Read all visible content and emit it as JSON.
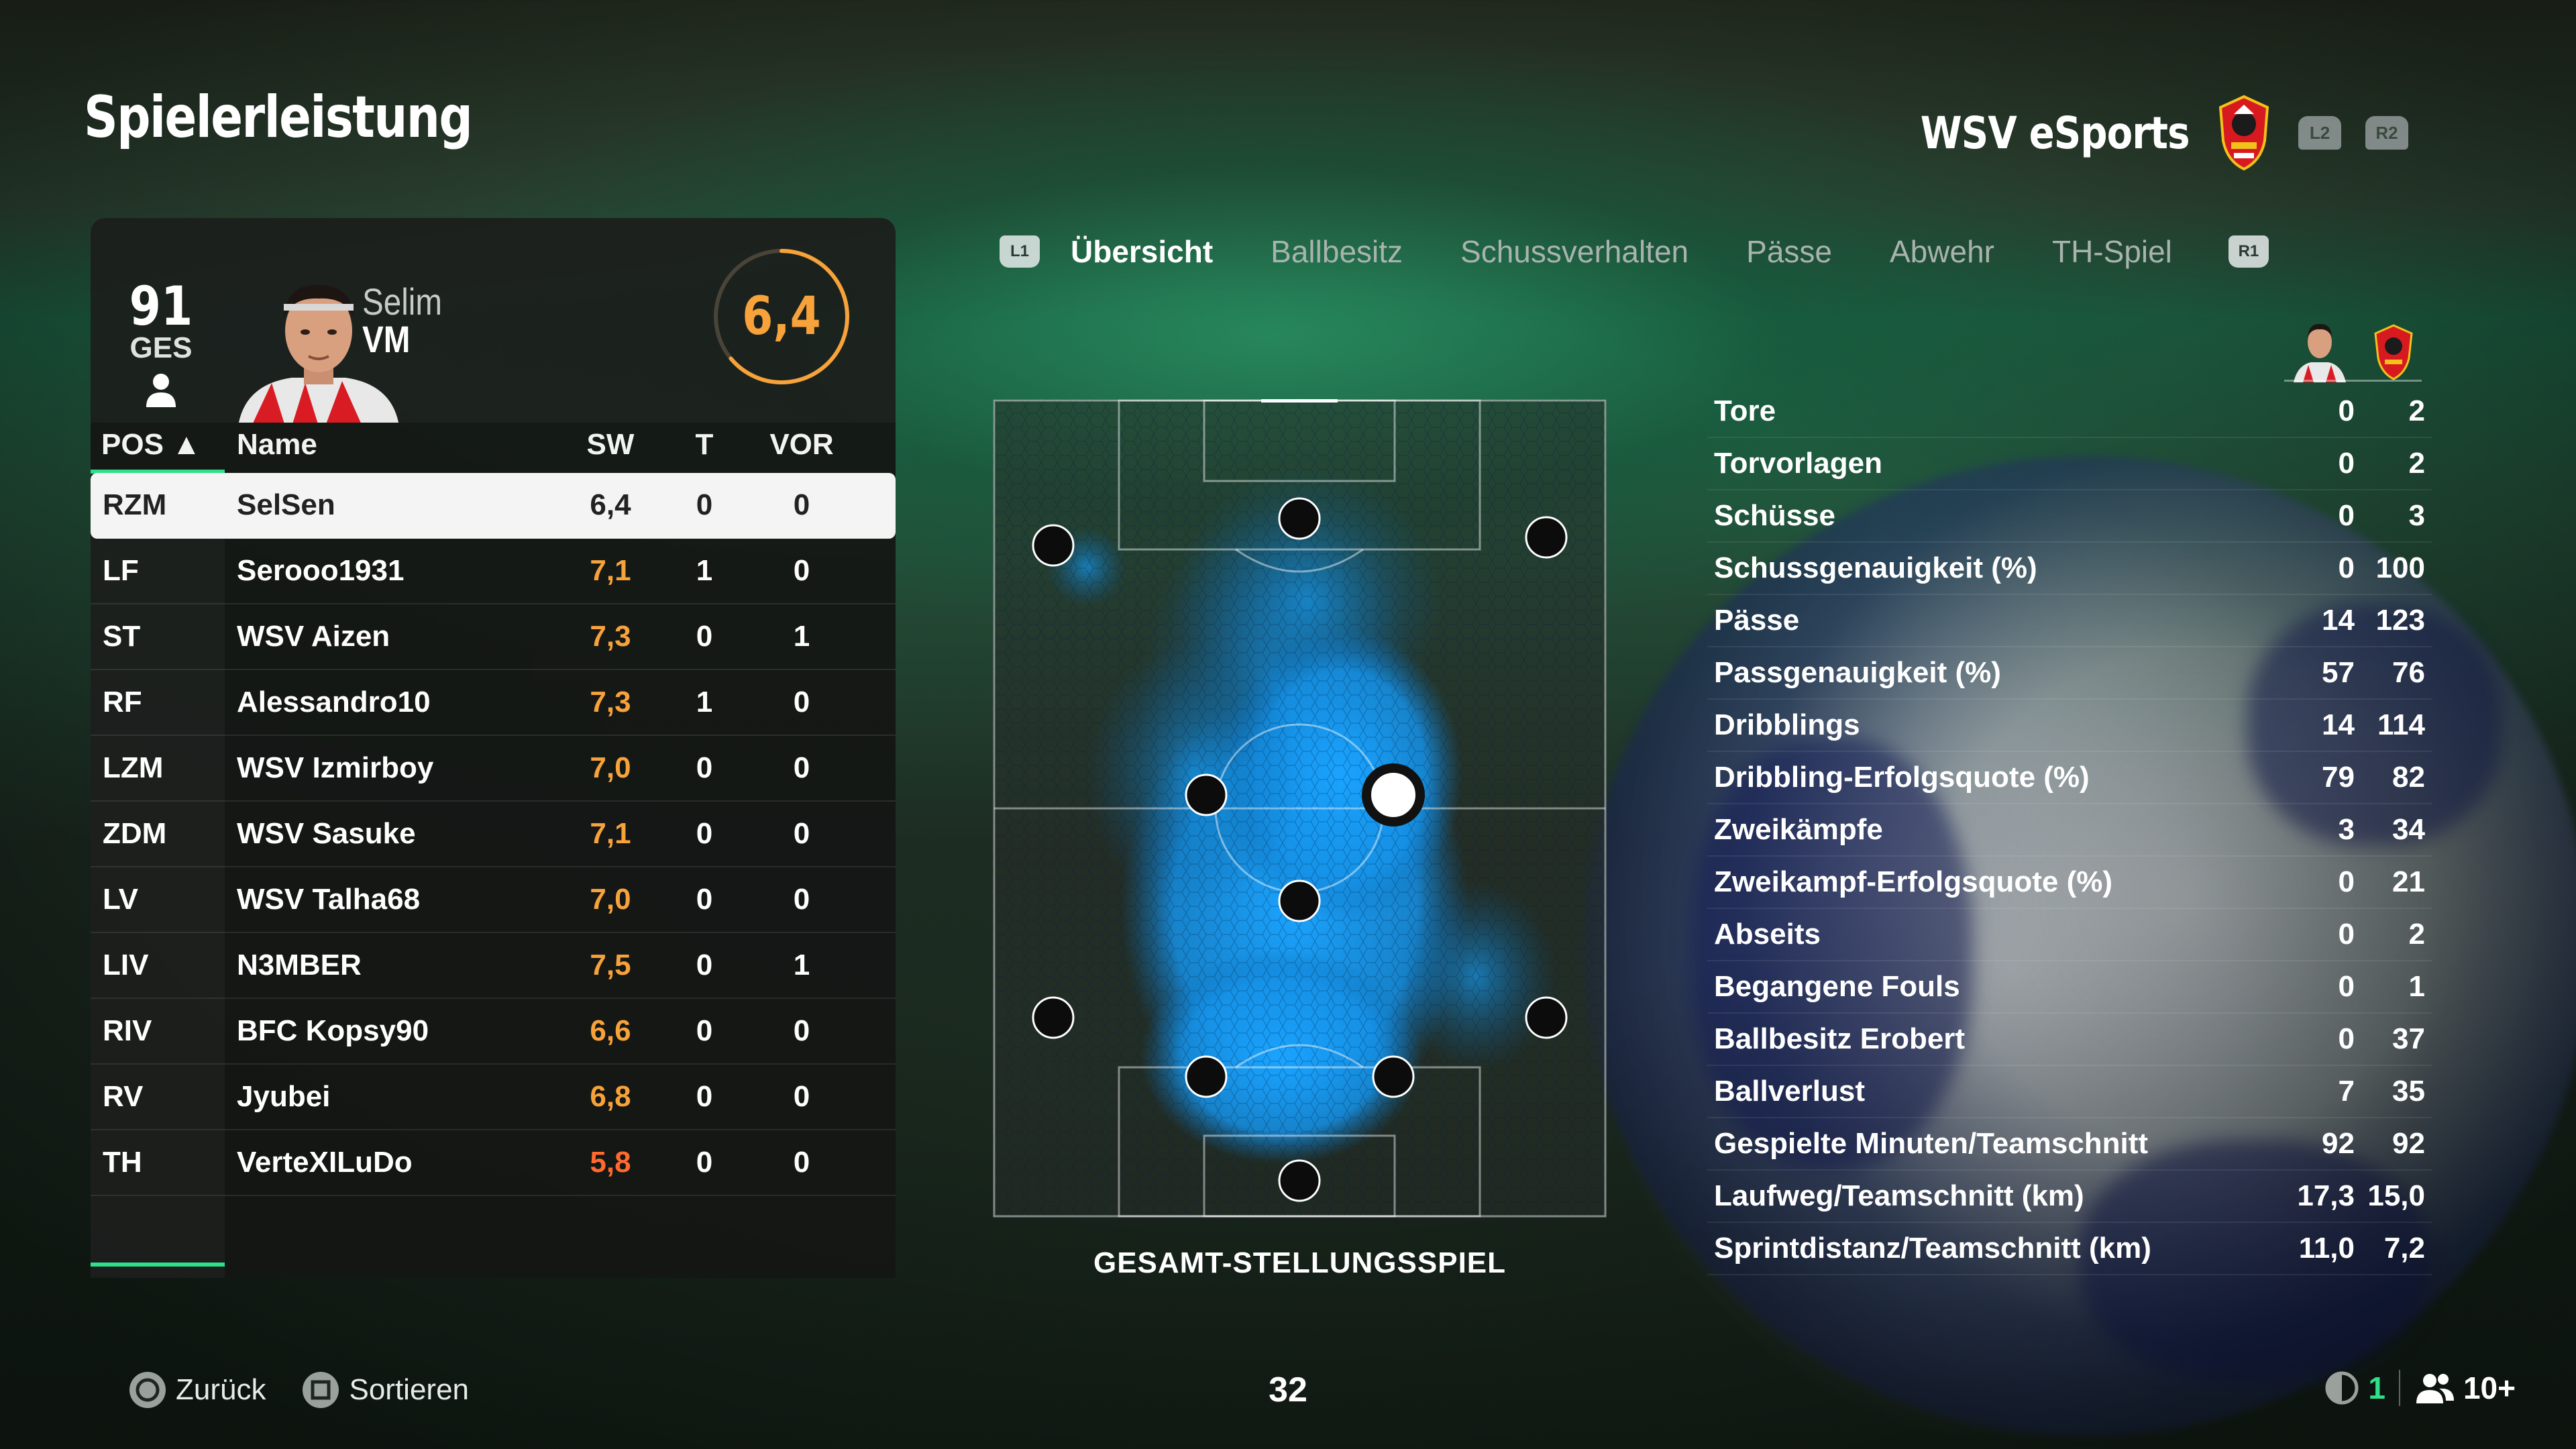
{
  "header": {
    "title": "Spielerleistung",
    "team_name": "WSV eSports",
    "l2": "L2",
    "r2": "R2"
  },
  "player_card": {
    "overall": "91",
    "overall_label": "GES",
    "first_name": "Selim",
    "position": "VM",
    "rating": "6,4",
    "rating_color": "#f7a23a"
  },
  "table": {
    "headers": {
      "pos": "POS ▲",
      "name": "Name",
      "sw": "SW",
      "t": "T",
      "vor": "VOR"
    },
    "rows": [
      {
        "pos": "RZM",
        "name": "SelSen",
        "sw": "6,4",
        "t": "0",
        "vor": "0",
        "selected": true,
        "sw_color": "#1c1e1c"
      },
      {
        "pos": "LF",
        "name": "Serooo1931",
        "sw": "7,1",
        "t": "1",
        "vor": "0",
        "sw_color": "#f7a23a"
      },
      {
        "pos": "ST",
        "name": "WSV Aizen",
        "sw": "7,3",
        "t": "0",
        "vor": "1",
        "sw_color": "#f7a23a"
      },
      {
        "pos": "RF",
        "name": "Alessandro10",
        "sw": "7,3",
        "t": "1",
        "vor": "0",
        "sw_color": "#f7a23a"
      },
      {
        "pos": "LZM",
        "name": "WSV Izmirboy",
        "sw": "7,0",
        "t": "0",
        "vor": "0",
        "sw_color": "#f7a23a"
      },
      {
        "pos": "ZDM",
        "name": "WSV Sasuke",
        "sw": "7,1",
        "t": "0",
        "vor": "0",
        "sw_color": "#f7a23a"
      },
      {
        "pos": "LV",
        "name": "WSV Talha68",
        "sw": "7,0",
        "t": "0",
        "vor": "0",
        "sw_color": "#f7a23a"
      },
      {
        "pos": "LIV",
        "name": "N3MBER",
        "sw": "7,5",
        "t": "0",
        "vor": "1",
        "sw_color": "#f7a23a"
      },
      {
        "pos": "RIV",
        "name": "BFC Kopsy90",
        "sw": "6,6",
        "t": "0",
        "vor": "0",
        "sw_color": "#f7a23a"
      },
      {
        "pos": "RV",
        "name": "Jyubei",
        "sw": "6,8",
        "t": "0",
        "vor": "0",
        "sw_color": "#f7a23a"
      },
      {
        "pos": "TH",
        "name": "VerteXILuDo",
        "sw": "5,8",
        "t": "0",
        "vor": "0",
        "sw_color": "#ff6a2e"
      }
    ]
  },
  "tabs": {
    "l1": "L1",
    "r1": "R1",
    "items": [
      "Übersicht",
      "Ballbesitz",
      "Schussverhalten",
      "Pässe",
      "Abwehr",
      "TH-Spiel"
    ],
    "active": "Übersicht"
  },
  "pitch": {
    "caption": "GESAMT-STELLUNGSSPIEL",
    "heat_color": "#1aa3ff"
  },
  "stats": [
    {
      "label": "Tore",
      "player": "0",
      "team": "2"
    },
    {
      "label": "Torvorlagen",
      "player": "0",
      "team": "2"
    },
    {
      "label": "Schüsse",
      "player": "0",
      "team": "3"
    },
    {
      "label": "Schussgenauigkeit (%)",
      "player": "0",
      "team": "100"
    },
    {
      "label": "Pässe",
      "player": "14",
      "team": "123"
    },
    {
      "label": "Passgenauigkeit (%)",
      "player": "57",
      "team": "76"
    },
    {
      "label": "Dribblings",
      "player": "14",
      "team": "114"
    },
    {
      "label": "Dribbling-Erfolgsquote (%)",
      "player": "79",
      "team": "82"
    },
    {
      "label": "Zweikämpfe",
      "player": "3",
      "team": "34"
    },
    {
      "label": "Zweikampf-Erfolgsquote (%)",
      "player": "0",
      "team": "21"
    },
    {
      "label": "Abseits",
      "player": "0",
      "team": "2"
    },
    {
      "label": "Begangene Fouls",
      "player": "0",
      "team": "1"
    },
    {
      "label": "Ballbesitz Erobert",
      "player": "0",
      "team": "37"
    },
    {
      "label": "Ballverlust",
      "player": "7",
      "team": "35"
    },
    {
      "label": "Gespielte Minuten/Teamschnitt",
      "player": "92",
      "team": "92"
    },
    {
      "label": "Laufweg/Teamschnitt (km)",
      "player": "17,3",
      "team": "15,0"
    },
    {
      "label": "Sprintdistanz/Teamschnitt (km)",
      "player": "11,0",
      "team": "7,2"
    }
  ],
  "footer": {
    "back_label": "Zurück",
    "sort_label": "Sortieren",
    "page_number": "32",
    "network_count": "1",
    "users_count": "10+"
  },
  "colors": {
    "accent": "#2fe08a",
    "rating": "#f7a23a",
    "low_rating": "#ff6a2e"
  }
}
